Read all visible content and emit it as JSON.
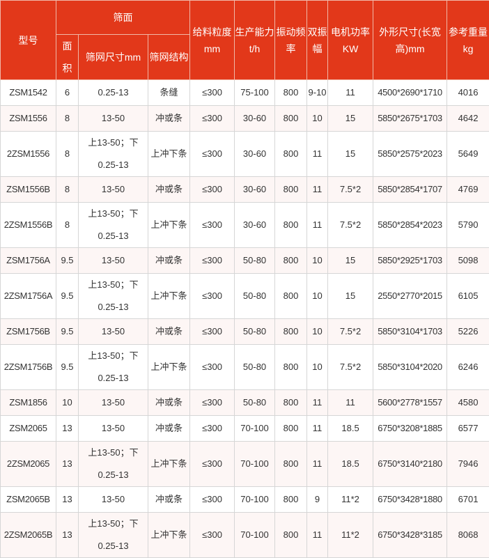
{
  "header": {
    "model": "型号",
    "screen_surface": "筛面",
    "area": "面 积",
    "mesh_size": "筛网尺寸mm",
    "mesh_structure": "筛网结构",
    "feed_size": [
      "给料粒度",
      "mm"
    ],
    "capacity": [
      "生产能力",
      "t/h"
    ],
    "frequency": [
      "振动频",
      "率"
    ],
    "amplitude": [
      "双振",
      "幅"
    ],
    "power": [
      "电机功率",
      "KW"
    ],
    "dimensions": [
      "外形尺寸(长宽",
      "高)mm"
    ],
    "weight": [
      "参考重量",
      "kg"
    ]
  },
  "colors": {
    "header_bg": "#e2381a",
    "alt_row_bg": "#fdf6f5"
  },
  "rows": [
    {
      "model": "ZSM1542",
      "area": "6",
      "mesh": "0.25-13",
      "structure": "条缝",
      "feed": "≤300",
      "capacity": "75-100",
      "freq": "800",
      "amp": "9-10",
      "power": "11",
      "dims": "4500*2690*1710",
      "weight": "4016"
    },
    {
      "model": "ZSM1556",
      "area": "8",
      "mesh": "13-50",
      "structure": "冲或条",
      "feed": "≤300",
      "capacity": "30-60",
      "freq": "800",
      "amp": "10",
      "power": "15",
      "dims": "5850*2675*1703",
      "weight": "4642"
    },
    {
      "model": "2ZSM1556",
      "area": "8",
      "mesh": "上13-50；下0.25-13",
      "structure": "上冲下条",
      "feed": "≤300",
      "capacity": "30-60",
      "freq": "800",
      "amp": "11",
      "power": "15",
      "dims": "5850*2575*2023",
      "weight": "5649"
    },
    {
      "model": "ZSM1556B",
      "area": "8",
      "mesh": "13-50",
      "structure": "冲或条",
      "feed": "≤300",
      "capacity": "30-60",
      "freq": "800",
      "amp": "11",
      "power": "7.5*2",
      "dims": "5850*2854*1707",
      "weight": "4769"
    },
    {
      "model": "2ZSM1556B",
      "area": "8",
      "mesh": "上13-50；下0.25-13",
      "structure": "上冲下条",
      "feed": "≤300",
      "capacity": "30-60",
      "freq": "800",
      "amp": "11",
      "power": "7.5*2",
      "dims": "5850*2854*2023",
      "weight": "5790"
    },
    {
      "model": "ZSM1756A",
      "area": "9.5",
      "mesh": "13-50",
      "structure": "冲或条",
      "feed": "≤300",
      "capacity": "50-80",
      "freq": "800",
      "amp": "10",
      "power": "15",
      "dims": "5850*2925*1703",
      "weight": "5098"
    },
    {
      "model": "2ZSM1756A",
      "area": "9.5",
      "mesh": "上13-50；下0.25-13",
      "structure": "上冲下条",
      "feed": "≤300",
      "capacity": "50-80",
      "freq": "800",
      "amp": "10",
      "power": "15",
      "dims": "2550*2770*2015",
      "weight": "6105"
    },
    {
      "model": "ZSM1756B",
      "area": "9.5",
      "mesh": "13-50",
      "structure": "冲或条",
      "feed": "≤300",
      "capacity": "50-80",
      "freq": "800",
      "amp": "10",
      "power": "7.5*2",
      "dims": "5850*3104*1703",
      "weight": "5226"
    },
    {
      "model": "2ZSM1756B",
      "area": "9.5",
      "mesh": "上13-50；下0.25-13",
      "structure": "上冲下条",
      "feed": "≤300",
      "capacity": "50-80",
      "freq": "800",
      "amp": "10",
      "power": "7.5*2",
      "dims": "5850*3104*2020",
      "weight": "6246"
    },
    {
      "model": "ZSM1856",
      "area": "10",
      "mesh": "13-50",
      "structure": "冲或条",
      "feed": "≤300",
      "capacity": "50-80",
      "freq": "800",
      "amp": "11",
      "power": "11",
      "dims": "5600*2778*1557",
      "weight": "4580"
    },
    {
      "model": "ZSM2065",
      "area": "13",
      "mesh": "13-50",
      "structure": "冲或条",
      "feed": "≤300",
      "capacity": "70-100",
      "freq": "800",
      "amp": "11",
      "power": "18.5",
      "dims": "6750*3208*1885",
      "weight": "6577"
    },
    {
      "model": "2ZSM2065",
      "area": "13",
      "mesh": "上13-50；下0.25-13",
      "structure": "上冲下条",
      "feed": "≤300",
      "capacity": "70-100",
      "freq": "800",
      "amp": "11",
      "power": "18.5",
      "dims": "6750*3140*2180",
      "weight": "7946"
    },
    {
      "model": "ZSM2065B",
      "area": "13",
      "mesh": "13-50",
      "structure": "冲或条",
      "feed": "≤300",
      "capacity": "70-100",
      "freq": "800",
      "amp": "9",
      "power": "11*2",
      "dims": "6750*3428*1880",
      "weight": "6701"
    },
    {
      "model": "2ZSM2065B",
      "area": "13",
      "mesh": "上13-50；下0.25-13",
      "structure": "上冲下条",
      "feed": "≤300",
      "capacity": "70-100",
      "freq": "800",
      "amp": "11",
      "power": "11*2",
      "dims": "6750*3428*3185",
      "weight": "8068"
    }
  ]
}
